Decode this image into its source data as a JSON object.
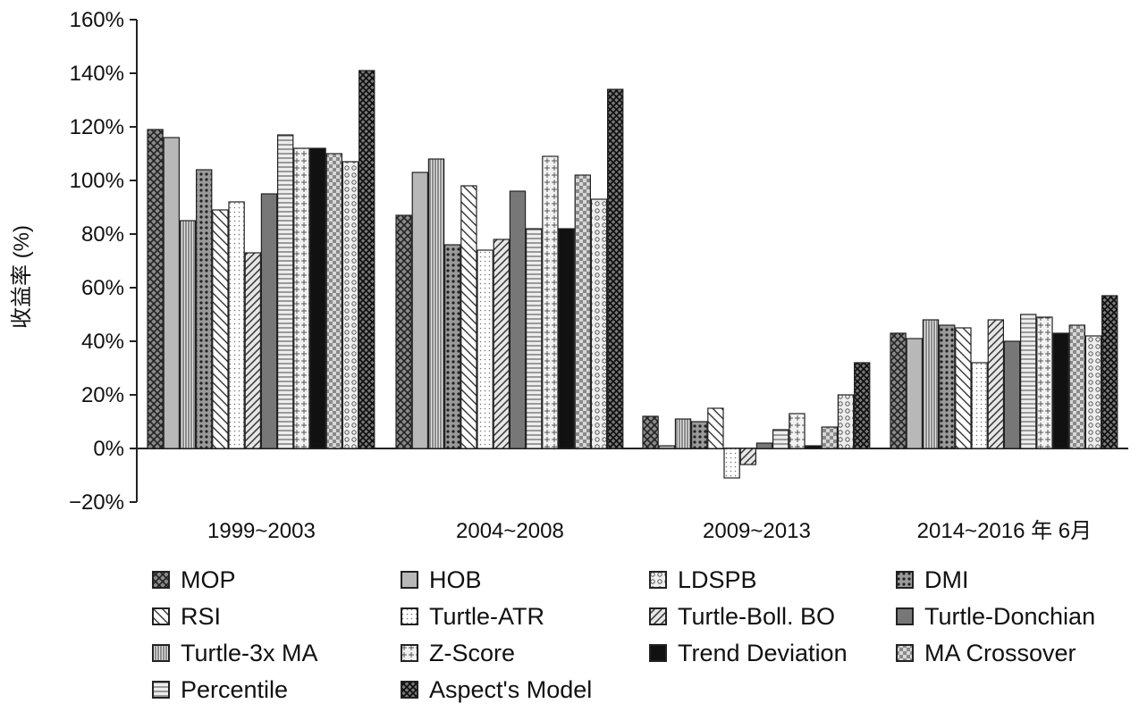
{
  "chart_data": {
    "type": "bar",
    "title": "",
    "xlabel": "",
    "ylabel": "收益率 (%)",
    "ylim": [
      -20,
      160
    ],
    "yticks": [
      -20,
      0,
      20,
      40,
      60,
      80,
      100,
      120,
      140,
      160
    ],
    "ytick_labels": [
      "−20%",
      "0%",
      "20%",
      "40%",
      "60%",
      "80%",
      "100%",
      "120%",
      "140%",
      "160%"
    ],
    "categories": [
      "1999~2003",
      "2004~2008",
      "2009~2013",
      "2014~2016 年 6月"
    ],
    "grid": false,
    "legend_position": "bottom",
    "series": [
      {
        "name": "MOP",
        "values": [
          119,
          87,
          12,
          43
        ],
        "color": "#6a6a6a",
        "pattern": "crosshatch"
      },
      {
        "name": "HOB",
        "values": [
          116,
          103,
          1,
          41
        ],
        "color": "#b8b8b8",
        "pattern": "solid"
      },
      {
        "name": "Turtle-3x MA",
        "values": [
          85,
          108,
          11,
          48
        ],
        "color": "#d8d8d8",
        "pattern": "vlines"
      },
      {
        "name": "DMI",
        "values": [
          104,
          76,
          10,
          46
        ],
        "color": "#8a8a8a",
        "pattern": "dots-dark"
      },
      {
        "name": "RSI",
        "values": [
          89,
          98,
          15,
          45
        ],
        "color": "#ffffff",
        "pattern": "back-diag"
      },
      {
        "name": "Turtle-ATR",
        "values": [
          92,
          74,
          -11,
          32
        ],
        "color": "#ffffff",
        "pattern": "fine-dots"
      },
      {
        "name": "Turtle-Boll. BO",
        "values": [
          73,
          78,
          -6,
          48
        ],
        "color": "#e0e0e0",
        "pattern": "fwd-diag"
      },
      {
        "name": "Turtle-Donchian",
        "values": [
          95,
          96,
          2,
          40
        ],
        "color": "#777777",
        "pattern": "solid"
      },
      {
        "name": "Percentile",
        "values": [
          117,
          82,
          7,
          50
        ],
        "color": "#e6e6e6",
        "pattern": "hlines"
      },
      {
        "name": "Z-Score",
        "values": [
          112,
          109,
          13,
          49
        ],
        "color": "#f0f0f0",
        "pattern": "plus"
      },
      {
        "name": "Trend Deviation",
        "values": [
          112,
          82,
          1,
          43
        ],
        "color": "#111111",
        "pattern": "solid"
      },
      {
        "name": "MA Crossover",
        "values": [
          110,
          102,
          8,
          46
        ],
        "color": "#c8c8c8",
        "pattern": "checker"
      },
      {
        "name": "LDSPB",
        "values": [
          107,
          93,
          20,
          42
        ],
        "color": "#dcdcdc",
        "pattern": "rings"
      },
      {
        "name": "Aspect's Model",
        "values": [
          141,
          134,
          32,
          57
        ],
        "color": "#5a5a5a",
        "pattern": "crosshatch-dense"
      }
    ],
    "legend_order": [
      "MOP",
      "HOB",
      "LDSPB",
      "DMI",
      "RSI",
      "Turtle-ATR",
      "Turtle-Boll. BO",
      "Turtle-Donchian",
      "Turtle-3x MA",
      "Z-Score",
      "Trend Deviation",
      "MA Crossover",
      "Percentile",
      "Aspect's Model"
    ]
  }
}
